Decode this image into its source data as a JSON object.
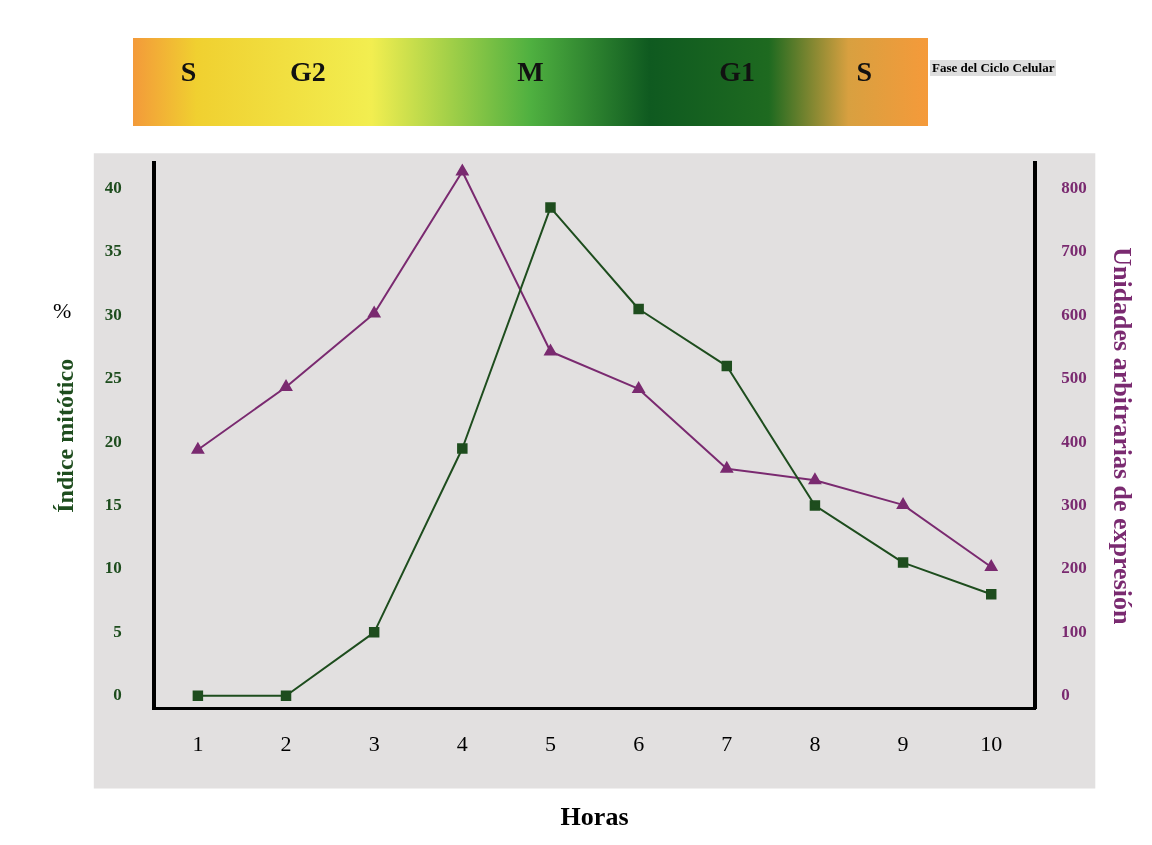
{
  "chart_data": {
    "type": "line",
    "xlabel": "Horas",
    "ylabel": "Índice mitótico",
    "y2label": "Unidades arbitrarias de expresión",
    "categories": [
      "1",
      "2",
      "3",
      "4",
      "5",
      "6",
      "7",
      "8",
      "9",
      "10"
    ],
    "series": [
      {
        "color": "#1e4d1e",
        "marker": "square",
        "values": [
          0,
          0,
          5,
          19.5,
          38.5,
          30.5,
          26,
          15,
          10.5,
          8
        ]
      },
      {
        "color": "#7a2a70",
        "marker": "triangle",
        "axis": "y2",
        "values": [
          388,
          487,
          603,
          827,
          543,
          484,
          358,
          340,
          301,
          203
        ]
      }
    ],
    "ylim": [
      -1,
      42
    ],
    "yticks": [
      0,
      5,
      10,
      15,
      20,
      25,
      30,
      35,
      40
    ],
    "y2lim": [
      -20,
      840
    ],
    "y2ticks": [
      0,
      100,
      200,
      300,
      400,
      500,
      600,
      700,
      800
    ],
    "grid": false,
    "legend": false,
    "annotations": [
      "S",
      "G2",
      "M",
      "G1",
      "S",
      "Fase del Ciclo Celular",
      "%"
    ]
  }
}
